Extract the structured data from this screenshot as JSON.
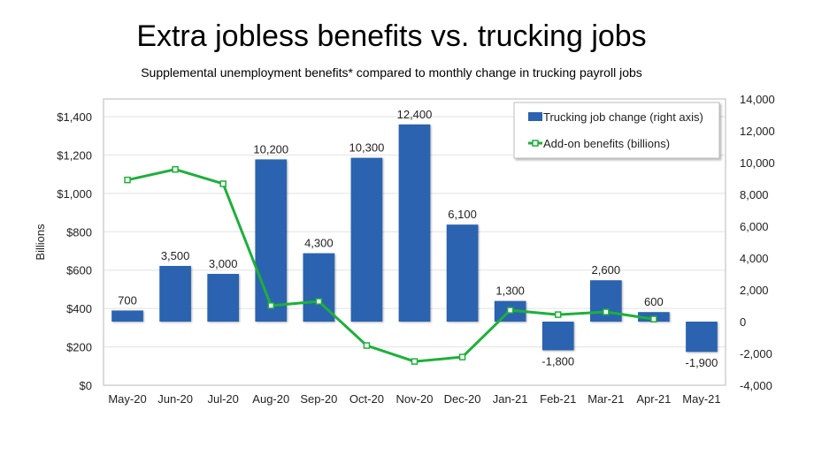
{
  "chart_data": {
    "type": "bar+line",
    "title": "Extra jobless benefits vs. trucking jobs",
    "subtitle": "Supplemental unemployment benefits* compared to monthly change in trucking payroll jobs",
    "categories": [
      "May-20",
      "Jun-20",
      "Jul-20",
      "Aug-20",
      "Sep-20",
      "Oct-20",
      "Nov-20",
      "Dec-20",
      "Jan-21",
      "Feb-21",
      "Mar-21",
      "Apr-21",
      "May-21"
    ],
    "series": [
      {
        "name": "Trucking job change (right axis)",
        "type": "bar",
        "axis": "right",
        "color": "#2b63b0",
        "values": [
          700,
          3500,
          3000,
          10200,
          4300,
          10300,
          12400,
          6100,
          1300,
          -1800,
          2600,
          600,
          -1900
        ],
        "labels": [
          "700",
          "3,500",
          "3,000",
          "10,200",
          "4,300",
          "10,300",
          "12,400",
          "6,100",
          "1,300",
          "-1,800",
          "2,600",
          "600",
          "-1,900"
        ]
      },
      {
        "name": "Add-on benefits (billions)",
        "type": "line",
        "axis": "left",
        "color": "#1db03a",
        "values": [
          1070,
          1125,
          1050,
          415,
          437,
          207,
          124,
          147,
          391,
          368,
          382,
          345,
          null
        ]
      }
    ],
    "ylabel": "Billions",
    "ylim_left": [
      0,
      1400
    ],
    "yticks_left": [
      "$0",
      "$200",
      "$400",
      "$600",
      "$800",
      "$1,000",
      "$1,200",
      "$1,400"
    ],
    "ylim_right": [
      -4000,
      14000
    ],
    "yticks_right": [
      "-4,000",
      "-2,000",
      "0",
      "2,000",
      "4,000",
      "6,000",
      "8,000",
      "10,000",
      "12,000",
      "14,000"
    ],
    "grid": true,
    "legend": "top-right"
  }
}
